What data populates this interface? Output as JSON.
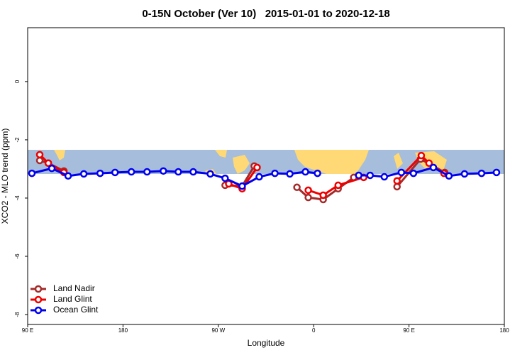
{
  "chart_data": {
    "type": "line",
    "title": "0-15N October (Ver 10)   2015-01-01 to 2020-12-18",
    "xlabel": "Longitude",
    "ylabel": "XCO2 - MLO trend (ppm)",
    "xlim": [
      90,
      540
    ],
    "xticks": [
      {
        "value": 90,
        "label": "90 E"
      },
      {
        "value": 180,
        "label": "180"
      },
      {
        "value": 270,
        "label": "90 W"
      },
      {
        "value": 360,
        "label": "0"
      },
      {
        "value": 450,
        "label": "90 E"
      },
      {
        "value": 540,
        "label": "180"
      }
    ],
    "ylim": [
      -8.34,
      1.85
    ],
    "yticks": [
      0,
      -2,
      -4,
      -6,
      -8
    ],
    "legend": "bottom-left",
    "series": [
      {
        "name": "Land Nadir",
        "color": "#a52a2a",
        "x": [
          101.4,
          109.5,
          124.2,
          null,
          276.4,
          292.5,
          303.9,
          null,
          344.2,
          354.9,
          369,
          383.1,
          397.8,
          null,
          438.7,
          460.9,
          483.7
        ],
        "values": [
          -2.71,
          -2.8,
          -3.07,
          null,
          -3.56,
          -3.59,
          -2.9,
          null,
          -3.63,
          -3.98,
          -4.05,
          -3.68,
          -3.29,
          null,
          -3.61,
          -2.66,
          -3.12
        ]
      },
      {
        "name": "Land Glint",
        "color": "#ee0000",
        "x": [
          101.4,
          109.5,
          124.2,
          null,
          279.8,
          292.5,
          306.6,
          null,
          354.9,
          369,
          383.1,
          407.2,
          null,
          438.7,
          461.6,
          468.9,
          483
        ],
        "values": [
          -2.51,
          -2.8,
          -3.12,
          null,
          -3.51,
          -3.68,
          -2.95,
          null,
          -3.73,
          -3.9,
          -3.56,
          -3.29,
          null,
          -3.41,
          -2.54,
          -2.8,
          -3.15
        ]
      },
      {
        "name": "Ocean Glint",
        "color": "#0000ee",
        "x": [
          94,
          112.8,
          128.2,
          143,
          158.4,
          172.5,
          187.9,
          202.7,
          218.1,
          232.2,
          246.3,
          262.4,
          276.4,
          292.5,
          308.6,
          323.4,
          337.5,
          352.2,
          363.6,
          null,
          402.5,
          413.3,
          426.7,
          442.8,
          454.2,
          473,
          487.7,
          502.4,
          518.5,
          532.6
        ],
        "values": [
          -3.15,
          -2.98,
          -3.24,
          -3.17,
          -3.15,
          -3.12,
          -3.1,
          -3.1,
          -3.07,
          -3.1,
          -3.1,
          -3.17,
          -3.32,
          -3.59,
          -3.27,
          -3.15,
          -3.17,
          -3.1,
          -3.15,
          null,
          -3.22,
          -3.22,
          -3.27,
          -3.12,
          -3.15,
          -2.95,
          -3.24,
          -3.17,
          -3.15,
          -3.12
        ]
      }
    ]
  }
}
